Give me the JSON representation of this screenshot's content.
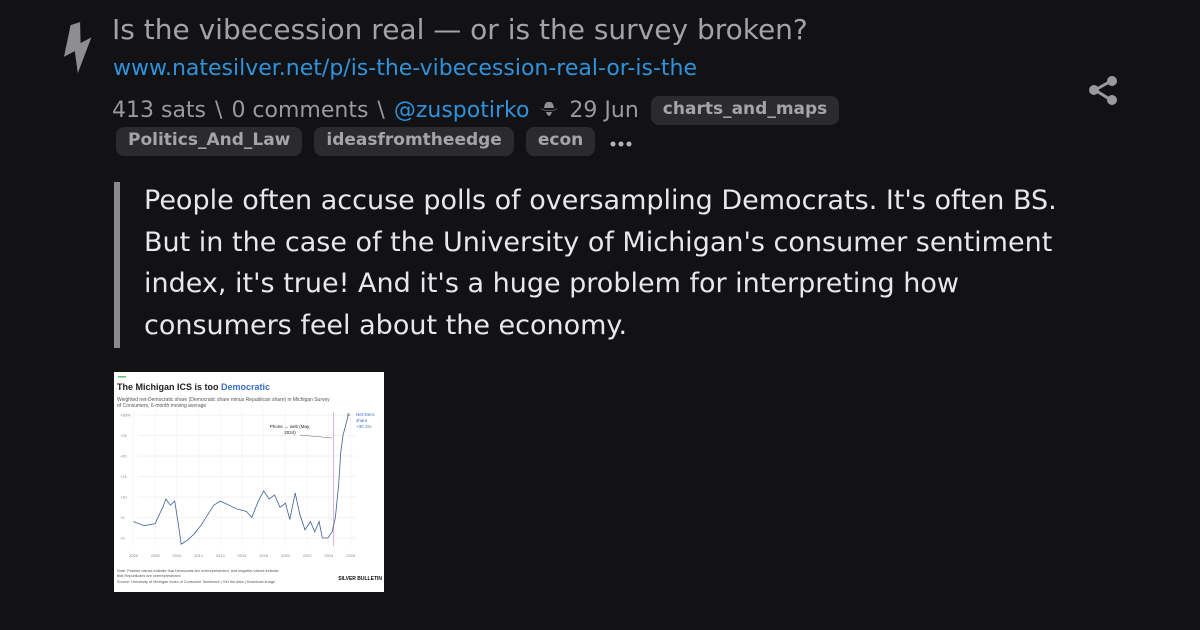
{
  "post": {
    "title": "Is the vibecession real — or is the survey broken?",
    "url": "www.natesilver.net/p/is-the-vibecession-real-or-is-the",
    "sats": "413 sats",
    "separator": "\\",
    "comments": "0 comments",
    "author": "@zuspotirko",
    "date": "29 Jun",
    "tags": [
      "charts_and_maps",
      "Politics_And_Law",
      "ideasfromtheedge",
      "econ"
    ],
    "quote": [
      "People often accuse polls of oversampling Democrats. It's often BS.",
      "But in the case of the University of Michigan's consumer sentiment",
      "index, it's true! And it's a huge problem for interpreting how",
      "consumers feel about the economy."
    ]
  },
  "thumbnail": {
    "type": "line",
    "title": "The Michigan ICS is too ",
    "title_highlight": "Democratic",
    "subtitle": [
      "Weighted net-Democratic share (Democratic share minus Republican share) in Michigan Survey",
      "of Consumers, 6-month moving average"
    ],
    "annotation": [
      "Phone → web (May,",
      "2024)"
    ],
    "end_label": [
      "Net-Dem.",
      "share",
      "+30.1%"
    ],
    "color": "#3b5f9a",
    "x": [
      2006.0,
      2007.0,
      2008.0,
      2008.7,
      2009.0,
      2009.4,
      2009.8,
      2010.1,
      2010.4,
      2011.0,
      2011.6,
      2012.2,
      2012.8,
      2013.4,
      2014.0,
      2014.8,
      2015.6,
      2016.4,
      2016.9,
      2017.5,
      2018.0,
      2018.5,
      2019.0,
      2019.5,
      2020.0,
      2020.4,
      2020.9,
      2021.3,
      2021.8,
      2022.3,
      2022.7,
      2023.1,
      2023.4,
      2023.9,
      2024.3,
      2024.6,
      2024.9,
      2025.1,
      2025.3,
      2025.6,
      2025.8
    ],
    "values": [
      4.0,
      3.0,
      3.5,
      7.5,
      9.5,
      8.0,
      9.0,
      4.0,
      -1.5,
      -0.5,
      1.0,
      3.0,
      5.5,
      8.0,
      9.0,
      8.0,
      7.0,
      6.5,
      5.0,
      9.0,
      11.5,
      9.5,
      10.5,
      7.5,
      8.5,
      4.5,
      11.0,
      6.0,
      2.0,
      4.0,
      1.5,
      4.0,
      0.0,
      0.0,
      1.5,
      5.0,
      13.0,
      21.0,
      25.0,
      28.0,
      30.1
    ],
    "xlim": [
      2005.5,
      2026.5
    ],
    "ylim": [
      -2,
      31
    ],
    "xticks": [
      2006,
      2008,
      2010,
      2012,
      2014,
      2016,
      2018,
      2020,
      2022,
      2024,
      2026
    ],
    "yticks": [
      {
        "value": 0,
        "label": "+0"
      },
      {
        "value": 5,
        "label": "+5"
      },
      {
        "value": 10,
        "label": "+10"
      },
      {
        "value": 15,
        "label": "+15"
      },
      {
        "value": 20,
        "label": "+20"
      },
      {
        "value": 25,
        "label": "+25"
      },
      {
        "value": 30,
        "label": "+30%"
      }
    ],
    "note": [
      "Note: Positive values indicate that Democrats are overrepresented, and negative values indicate",
      "that Republicans are overrepresented."
    ],
    "source": "Source: University of Michigan Index of Consumer Sentiment | Get the data | Download image",
    "brand": "SILVER BULLETIN"
  }
}
